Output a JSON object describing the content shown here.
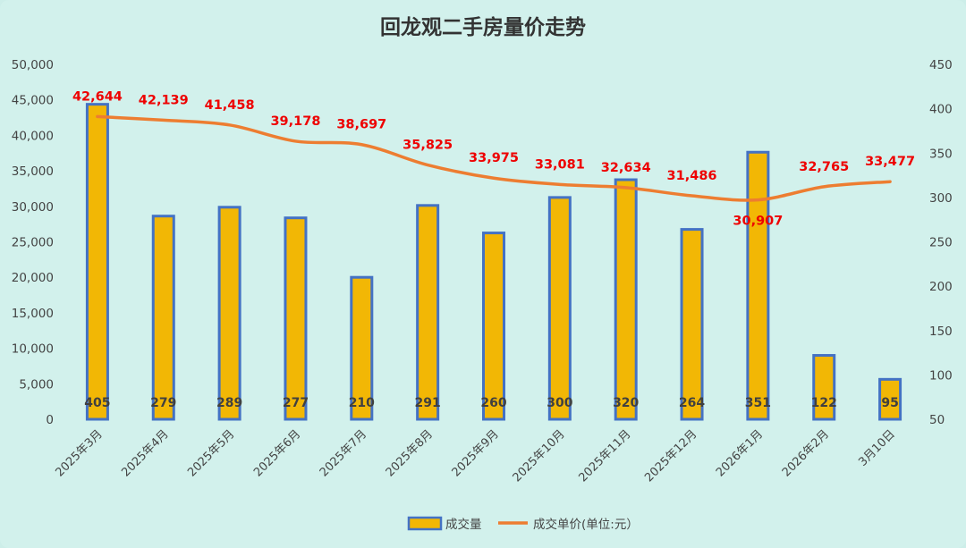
{
  "chart_data": {
    "type": "bar+line",
    "title": "回龙观二手房量价走势",
    "categories": [
      "2025年3月",
      "2025年4月",
      "2025年5月",
      "2025年6月",
      "2025年7月",
      "2025年8月",
      "2025年9月",
      "2025年10月",
      "2025年11月",
      "2025年12月",
      "2026年1月",
      "2026年2月",
      "3月10日"
    ],
    "series": [
      {
        "name": "成交量",
        "type": "bar",
        "axis": "right",
        "values": [
          405,
          279,
          289,
          277,
          210,
          291,
          260,
          300,
          320,
          264,
          351,
          122,
          95
        ],
        "labels": [
          "405",
          "279",
          "289",
          "277",
          "210",
          "291",
          "260",
          "300",
          "320",
          "264",
          "351",
          "122",
          "95"
        ],
        "color": "#f2b705",
        "border": "#4472c4"
      },
      {
        "name": "成交单价(单位:元）",
        "type": "line",
        "axis": "left",
        "values": [
          42644,
          42139,
          41458,
          39178,
          38697,
          35825,
          33975,
          33081,
          32634,
          31486,
          30907,
          32765,
          33477
        ],
        "labels": [
          "42,644",
          "42,139",
          "41,458",
          "39,178",
          "38,697",
          "35,825",
          "33,975",
          "33,081",
          "32,634",
          "31,486",
          "30,907",
          "32,765",
          "33,477"
        ],
        "color": "#ed7d31",
        "label_color": "#ee0000"
      }
    ],
    "left_axis": {
      "min": 0,
      "max": 50000,
      "step": 5000,
      "ticks": [
        "0",
        "5,000",
        "10,000",
        "15,000",
        "20,000",
        "25,000",
        "30,000",
        "35,000",
        "40,000",
        "45,000",
        "50,000"
      ]
    },
    "right_axis": {
      "min": 50,
      "max": 450,
      "step": 50,
      "ticks": [
        "50",
        "100",
        "150",
        "200",
        "250",
        "300",
        "350",
        "400",
        "450"
      ]
    },
    "legend": {
      "position": "bottom",
      "items": [
        "成交量",
        "成交单价(单位:元）"
      ]
    }
  }
}
